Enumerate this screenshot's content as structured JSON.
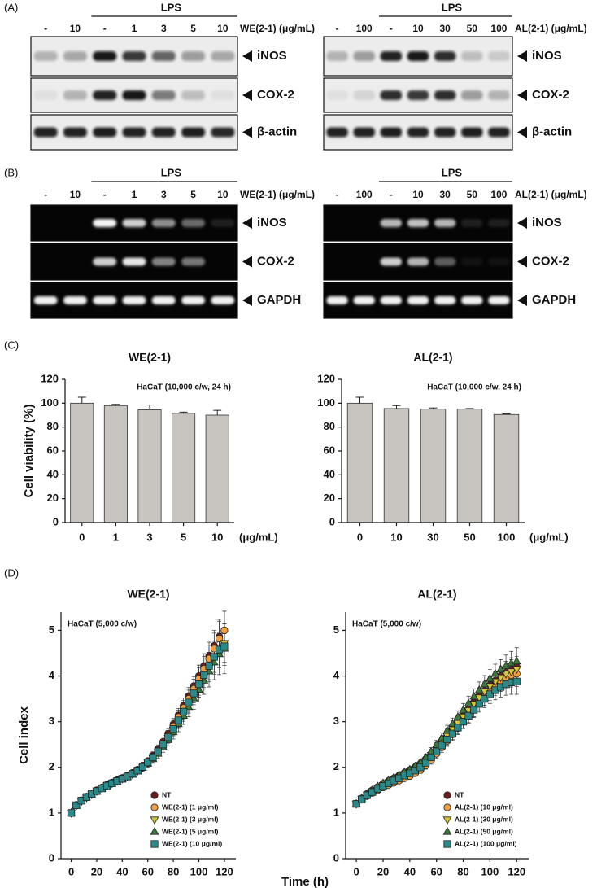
{
  "panel_labels": [
    "(A)",
    "(B)",
    "(C)",
    "(D)"
  ],
  "blots": [
    {
      "group_label": "LPS",
      "lanes": [
        "-",
        "10",
        "-",
        "1",
        "3",
        "5",
        "10"
      ],
      "treatment": "WE(2-1) (μg/mL)",
      "rows": [
        "iNOS",
        "COX-2",
        "β-actin"
      ]
    },
    {
      "group_label": "LPS",
      "lanes": [
        "-",
        "100",
        "-",
        "10",
        "30",
        "50",
        "100"
      ],
      "treatment": "AL(2-1) (μg/mL)",
      "rows": [
        "iNOS",
        "COX-2",
        "β-actin"
      ]
    },
    {
      "group_label": "LPS",
      "lanes": [
        "-",
        "10",
        "-",
        "1",
        "3",
        "5",
        "10"
      ],
      "treatment": "WE(2-1) (μg/mL)",
      "rows": [
        "iNOS",
        "COX-2",
        "GAPDH"
      ]
    },
    {
      "group_label": "LPS",
      "lanes": [
        "-",
        "100",
        "-",
        "10",
        "30",
        "50",
        "100"
      ],
      "treatment": "AL(2-1) (μg/mL)",
      "rows": [
        "iNOS",
        "COX-2",
        "GAPDH"
      ]
    }
  ],
  "chart_data": [
    {
      "type": "bar",
      "title": "WE(2-1)",
      "annotation": "HaCaT (10,000 c/w, 24 h)",
      "y_label": "Cell viability (%)",
      "x_unit": "(μg/mL)",
      "categories": [
        "0",
        "1",
        "3",
        "5",
        "10"
      ],
      "values": [
        100,
        98,
        94.5,
        91.5,
        90
      ],
      "errors": [
        5,
        1,
        4,
        1,
        4
      ],
      "color": "#c8c4c0",
      "ylim": [
        0,
        120
      ],
      "yticks": [
        0,
        20,
        40,
        60,
        80,
        100,
        120
      ],
      "grid": false
    },
    {
      "type": "bar",
      "title": "AL(2-1)",
      "annotation": "HaCaT (10,000 c/w, 24 h)",
      "x_unit": "(μg/mL)",
      "categories": [
        "0",
        "10",
        "30",
        "50",
        "100"
      ],
      "values": [
        100,
        95.5,
        95,
        95,
        90.5
      ],
      "errors": [
        5,
        2.5,
        1,
        0.5,
        0.5
      ],
      "color": "#c8c4c0",
      "ylim": [
        0,
        120
      ],
      "yticks": [
        0,
        20,
        40,
        60,
        80,
        100,
        120
      ],
      "grid": false
    },
    {
      "type": "line",
      "title": "WE(2-1)",
      "annotation": "HaCaT (5,000 c/w)",
      "y_label": "Cell index",
      "x_label": "Time (h)",
      "x": [
        0,
        4,
        8,
        12,
        16,
        20,
        24,
        28,
        32,
        36,
        40,
        44,
        48,
        52,
        56,
        60,
        64,
        68,
        72,
        76,
        80,
        84,
        88,
        92,
        96,
        100,
        104,
        108,
        112,
        116,
        120
      ],
      "xlim": [
        -8,
        129
      ],
      "xticks": [
        0,
        20,
        40,
        60,
        80,
        100,
        120
      ],
      "ylim": [
        0,
        5.4
      ],
      "yticks": [
        0,
        1,
        2,
        3,
        4,
        5
      ],
      "grid": false,
      "legend": "lower right",
      "series": [
        {
          "name": "NT",
          "color": "#6b1c1c",
          "marker": "circle",
          "values": [
            1.0,
            1.18,
            1.28,
            1.36,
            1.43,
            1.5,
            1.56,
            1.62,
            1.67,
            1.72,
            1.77,
            1.82,
            1.88,
            1.95,
            2.04,
            2.14,
            2.26,
            2.4,
            2.56,
            2.74,
            2.94,
            3.14,
            3.35,
            3.56,
            3.78,
            4.0,
            4.22,
            4.44,
            4.66,
            4.86,
            5.0
          ],
          "errors": [
            0.02,
            0.03,
            0.03,
            0.03,
            0.04,
            0.04,
            0.04,
            0.05,
            0.05,
            0.05,
            0.05,
            0.06,
            0.06,
            0.06,
            0.07,
            0.07,
            0.08,
            0.09,
            0.1,
            0.11,
            0.13,
            0.15,
            0.17,
            0.19,
            0.21,
            0.24,
            0.27,
            0.3,
            0.34,
            0.38,
            0.42
          ]
        },
        {
          "name": "WE(2-1) (1 μg/ml)",
          "color": "#f0a040",
          "marker": "circle",
          "values": [
            1.0,
            1.17,
            1.27,
            1.35,
            1.42,
            1.49,
            1.55,
            1.61,
            1.66,
            1.71,
            1.76,
            1.81,
            1.87,
            1.94,
            2.02,
            2.12,
            2.23,
            2.37,
            2.52,
            2.7,
            2.9,
            3.1,
            3.3,
            3.5,
            3.72,
            3.94,
            4.16,
            4.38,
            4.6,
            4.82,
            5.0
          ],
          "errors": [
            0.02,
            0.03,
            0.03,
            0.03,
            0.04,
            0.04,
            0.04,
            0.05,
            0.05,
            0.05,
            0.05,
            0.06,
            0.06,
            0.06,
            0.07,
            0.07,
            0.08,
            0.09,
            0.1,
            0.11,
            0.13,
            0.15,
            0.17,
            0.19,
            0.21,
            0.24,
            0.27,
            0.3,
            0.34,
            0.38,
            0.42
          ]
        },
        {
          "name": "WE(2-1) (3 μg/ml)",
          "color": "#d8c838",
          "marker": "triangle-down",
          "values": [
            1.0,
            1.16,
            1.26,
            1.34,
            1.41,
            1.48,
            1.54,
            1.6,
            1.65,
            1.7,
            1.75,
            1.8,
            1.85,
            1.92,
            2.0,
            2.1,
            2.2,
            2.33,
            2.48,
            2.64,
            2.82,
            3.0,
            3.18,
            3.38,
            3.58,
            3.78,
            3.98,
            4.18,
            4.38,
            4.56,
            4.72
          ],
          "errors": [
            0.02,
            0.03,
            0.03,
            0.03,
            0.04,
            0.04,
            0.04,
            0.05,
            0.05,
            0.05,
            0.05,
            0.06,
            0.06,
            0.06,
            0.07,
            0.07,
            0.08,
            0.09,
            0.1,
            0.11,
            0.13,
            0.15,
            0.17,
            0.19,
            0.21,
            0.24,
            0.27,
            0.3,
            0.34,
            0.38,
            0.42
          ]
        },
        {
          "name": "WE(2-1) (5 μg/ml)",
          "color": "#3a7a3a",
          "marker": "triangle-up",
          "values": [
            1.0,
            1.16,
            1.26,
            1.34,
            1.41,
            1.47,
            1.53,
            1.59,
            1.64,
            1.69,
            1.74,
            1.79,
            1.84,
            1.91,
            1.99,
            2.08,
            2.18,
            2.3,
            2.44,
            2.6,
            2.77,
            2.95,
            3.13,
            3.32,
            3.51,
            3.7,
            3.9,
            4.1,
            4.3,
            4.48,
            4.6
          ],
          "errors": [
            0.02,
            0.03,
            0.03,
            0.03,
            0.04,
            0.04,
            0.04,
            0.05,
            0.05,
            0.05,
            0.05,
            0.06,
            0.06,
            0.06,
            0.07,
            0.08,
            0.09,
            0.1,
            0.11,
            0.13,
            0.15,
            0.17,
            0.19,
            0.21,
            0.24,
            0.27,
            0.3,
            0.34,
            0.38,
            0.45,
            0.55
          ]
        },
        {
          "name": "WE(2-1) (10 μg/ml)",
          "color": "#2a8a8a",
          "marker": "square",
          "values": [
            1.0,
            1.17,
            1.27,
            1.35,
            1.42,
            1.48,
            1.54,
            1.6,
            1.65,
            1.7,
            1.75,
            1.8,
            1.86,
            1.93,
            2.01,
            2.11,
            2.22,
            2.35,
            2.5,
            2.66,
            2.84,
            3.03,
            3.22,
            3.42,
            3.62,
            3.82,
            4.02,
            4.22,
            4.42,
            4.58,
            4.65
          ],
          "errors": [
            0.02,
            0.03,
            0.03,
            0.03,
            0.04,
            0.04,
            0.04,
            0.05,
            0.05,
            0.05,
            0.05,
            0.06,
            0.06,
            0.06,
            0.07,
            0.07,
            0.08,
            0.09,
            0.1,
            0.11,
            0.13,
            0.15,
            0.17,
            0.19,
            0.21,
            0.24,
            0.27,
            0.3,
            0.34,
            0.38,
            0.42
          ]
        }
      ]
    },
    {
      "type": "line",
      "title": "AL(2-1)",
      "annotation": "HaCaT (5,000 c/w)",
      "x": [
        0,
        4,
        8,
        12,
        16,
        20,
        24,
        28,
        32,
        36,
        40,
        44,
        48,
        52,
        56,
        60,
        64,
        68,
        72,
        76,
        80,
        84,
        88,
        92,
        96,
        100,
        104,
        108,
        112,
        116,
        120
      ],
      "xlim": [
        -8,
        129
      ],
      "xticks": [
        0,
        20,
        40,
        60,
        80,
        100,
        120
      ],
      "ylim": [
        0,
        5.4
      ],
      "yticks": [
        0,
        1,
        2,
        3,
        4,
        5
      ],
      "grid": false,
      "legend": "lower right",
      "series": [
        {
          "name": "NT",
          "color": "#6b1c1c",
          "marker": "circle",
          "values": [
            1.2,
            1.32,
            1.42,
            1.5,
            1.57,
            1.64,
            1.7,
            1.76,
            1.82,
            1.88,
            1.94,
            2.0,
            2.08,
            2.18,
            2.3,
            2.44,
            2.58,
            2.72,
            2.86,
            3.0,
            3.14,
            3.28,
            3.42,
            3.56,
            3.68,
            3.8,
            3.9,
            4.0,
            4.08,
            4.14,
            4.2
          ],
          "errors": [
            0.03,
            0.03,
            0.03,
            0.04,
            0.04,
            0.04,
            0.05,
            0.05,
            0.05,
            0.06,
            0.06,
            0.06,
            0.07,
            0.08,
            0.09,
            0.1,
            0.11,
            0.12,
            0.13,
            0.14,
            0.15,
            0.16,
            0.17,
            0.18,
            0.19,
            0.2,
            0.21,
            0.22,
            0.24,
            0.26,
            0.28
          ]
        },
        {
          "name": "AL(2-1) (10 μg/ml)",
          "color": "#f0a040",
          "marker": "circle",
          "values": [
            1.2,
            1.29,
            1.37,
            1.44,
            1.5,
            1.56,
            1.61,
            1.66,
            1.71,
            1.76,
            1.81,
            1.87,
            1.94,
            2.04,
            2.16,
            2.3,
            2.44,
            2.58,
            2.72,
            2.86,
            3.0,
            3.14,
            3.28,
            3.42,
            3.55,
            3.67,
            3.78,
            3.88,
            3.96,
            4.02,
            4.05
          ],
          "errors": [
            0.03,
            0.03,
            0.03,
            0.04,
            0.04,
            0.04,
            0.05,
            0.05,
            0.05,
            0.06,
            0.06,
            0.06,
            0.07,
            0.08,
            0.09,
            0.1,
            0.11,
            0.12,
            0.13,
            0.14,
            0.15,
            0.16,
            0.17,
            0.18,
            0.19,
            0.2,
            0.21,
            0.22,
            0.24,
            0.26,
            0.28
          ]
        },
        {
          "name": "AL(2-1) (30 μg/ml)",
          "color": "#d8c838",
          "marker": "triangle-down",
          "values": [
            1.2,
            1.31,
            1.4,
            1.48,
            1.55,
            1.61,
            1.67,
            1.73,
            1.79,
            1.85,
            1.91,
            1.97,
            2.05,
            2.15,
            2.27,
            2.41,
            2.55,
            2.69,
            2.83,
            2.97,
            3.11,
            3.25,
            3.39,
            3.53,
            3.66,
            3.78,
            3.88,
            3.97,
            4.05,
            4.1,
            4.15
          ],
          "errors": [
            0.03,
            0.03,
            0.03,
            0.04,
            0.04,
            0.04,
            0.05,
            0.05,
            0.05,
            0.06,
            0.06,
            0.06,
            0.07,
            0.08,
            0.09,
            0.1,
            0.11,
            0.12,
            0.13,
            0.14,
            0.15,
            0.16,
            0.17,
            0.18,
            0.19,
            0.2,
            0.21,
            0.22,
            0.24,
            0.26,
            0.28
          ]
        },
        {
          "name": "AL(2-1) (50 μg/ml)",
          "color": "#3a7a3a",
          "marker": "triangle-up",
          "values": [
            1.2,
            1.32,
            1.42,
            1.5,
            1.58,
            1.65,
            1.71,
            1.77,
            1.83,
            1.89,
            1.95,
            2.02,
            2.1,
            2.21,
            2.34,
            2.49,
            2.64,
            2.8,
            2.95,
            3.1,
            3.25,
            3.4,
            3.55,
            3.69,
            3.82,
            3.94,
            4.05,
            4.14,
            4.22,
            4.28,
            4.32
          ],
          "errors": [
            0.03,
            0.03,
            0.03,
            0.04,
            0.04,
            0.04,
            0.05,
            0.05,
            0.05,
            0.06,
            0.06,
            0.06,
            0.07,
            0.08,
            0.09,
            0.1,
            0.11,
            0.12,
            0.13,
            0.14,
            0.15,
            0.16,
            0.17,
            0.18,
            0.19,
            0.2,
            0.21,
            0.22,
            0.24,
            0.26,
            0.3
          ]
        },
        {
          "name": "AL(2-1) (100 μg/ml)",
          "color": "#2a8a8a",
          "marker": "square",
          "values": [
            1.2,
            1.3,
            1.39,
            1.46,
            1.53,
            1.59,
            1.65,
            1.71,
            1.76,
            1.82,
            1.87,
            1.93,
            2.0,
            2.1,
            2.22,
            2.35,
            2.48,
            2.61,
            2.74,
            2.87,
            3.0,
            3.13,
            3.26,
            3.39,
            3.5,
            3.6,
            3.69,
            3.76,
            3.82,
            3.86,
            3.88
          ],
          "errors": [
            0.03,
            0.03,
            0.03,
            0.04,
            0.04,
            0.04,
            0.05,
            0.05,
            0.05,
            0.06,
            0.06,
            0.06,
            0.07,
            0.08,
            0.09,
            0.1,
            0.11,
            0.12,
            0.13,
            0.14,
            0.15,
            0.16,
            0.17,
            0.18,
            0.19,
            0.2,
            0.21,
            0.22,
            0.24,
            0.26,
            0.28
          ]
        }
      ]
    }
  ]
}
